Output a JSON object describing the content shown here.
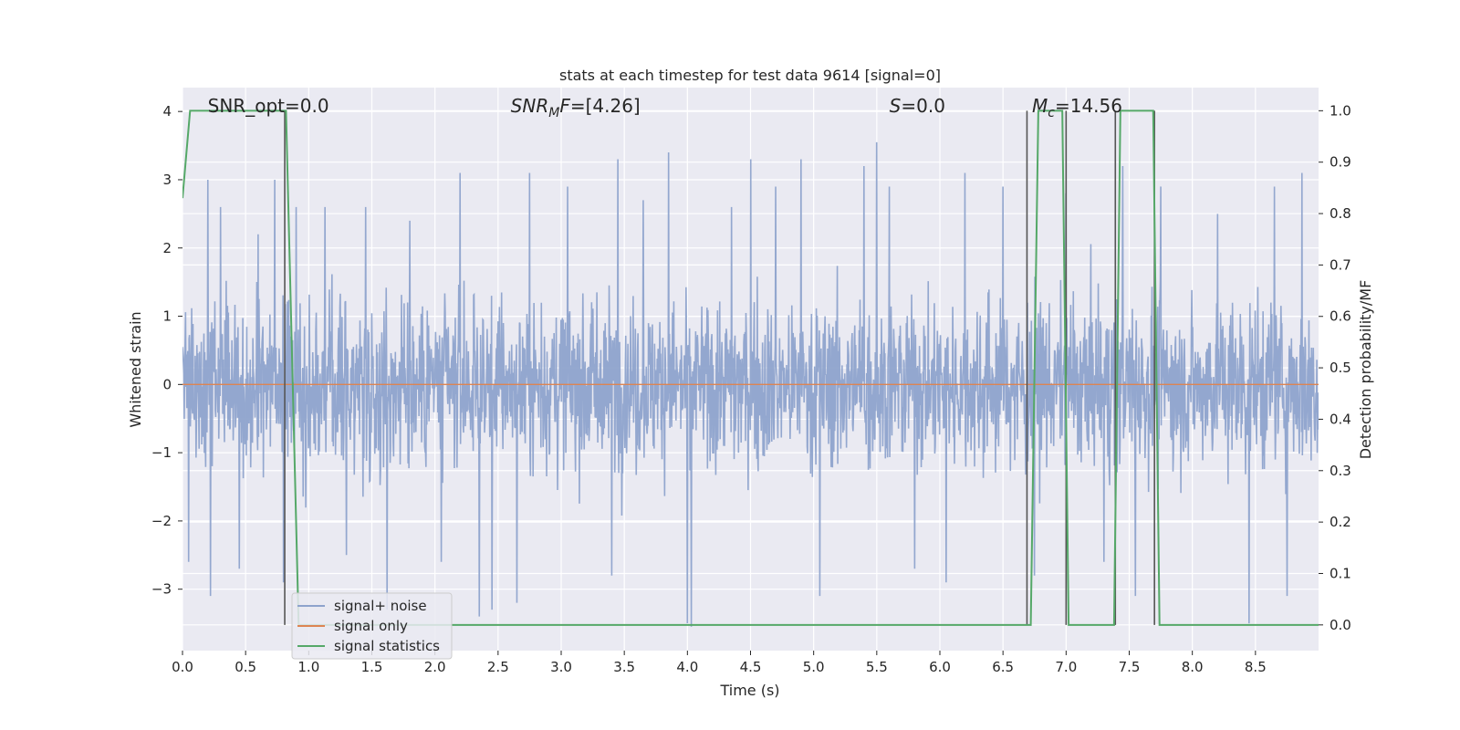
{
  "chart_data": {
    "type": "line",
    "title": "stats at each timestep for test data 9614 [signal=0]",
    "xlabel": "Time (s)",
    "ylabel_left": "Whitened strain",
    "ylabel_right": "Detection probability/MF",
    "xlim": [
      0.0,
      9.0
    ],
    "ylim_left": [
      -3.9,
      4.35
    ],
    "ylim_right": [
      -0.05,
      1.045
    ],
    "xticks": [
      "0.0",
      "0.5",
      "1.0",
      "1.5",
      "2.0",
      "2.5",
      "3.0",
      "3.5",
      "4.0",
      "4.5",
      "5.0",
      "5.5",
      "6.0",
      "6.5",
      "7.0",
      "7.5",
      "8.0",
      "8.5"
    ],
    "yticks_left": [
      "4",
      "3",
      "2",
      "1",
      "0",
      "−1",
      "−2",
      "−3"
    ],
    "yticks_right": [
      "1.0",
      "0.9",
      "0.8",
      "0.7",
      "0.6",
      "0.5",
      "0.4",
      "0.3",
      "0.2",
      "0.1",
      "0.0"
    ],
    "grid": true,
    "legend_placement": "lower-left",
    "annotations": [
      {
        "text": "SNR_opt=0.0",
        "x": 0.2
      },
      {
        "text": "SNRMF=[4.26]",
        "x": 2.6
      },
      {
        "text": "S=0.0",
        "x": 5.6
      },
      {
        "text": "Mc=14.56",
        "x": 6.6
      }
    ],
    "series": [
      {
        "name": "signal+ noise",
        "color": "#8ea3cc",
        "axis": "left",
        "peaks": [
          [
            0.05,
            -2.6
          ],
          [
            0.2,
            3.0
          ],
          [
            0.22,
            -3.1
          ],
          [
            0.3,
            2.6
          ],
          [
            0.45,
            -2.7
          ],
          [
            0.6,
            2.2
          ],
          [
            0.73,
            3.0
          ],
          [
            0.8,
            -2.9
          ],
          [
            0.9,
            2.6
          ],
          [
            1.13,
            2.6
          ],
          [
            1.3,
            -2.5
          ],
          [
            1.45,
            2.6
          ],
          [
            1.62,
            -3.3
          ],
          [
            1.8,
            2.4
          ],
          [
            2.05,
            -2.6
          ],
          [
            2.2,
            3.1
          ],
          [
            2.35,
            -3.4
          ],
          [
            2.45,
            -3.3
          ],
          [
            2.65,
            -3.2
          ],
          [
            2.75,
            3.1
          ],
          [
            3.05,
            2.9
          ],
          [
            3.4,
            -2.8
          ],
          [
            3.45,
            3.3
          ],
          [
            3.65,
            2.7
          ],
          [
            3.85,
            3.4
          ],
          [
            4.0,
            -3.5
          ],
          [
            4.03,
            -3.55
          ],
          [
            4.35,
            2.6
          ],
          [
            4.5,
            3.3
          ],
          [
            4.7,
            2.9
          ],
          [
            4.9,
            3.3
          ],
          [
            5.05,
            -3.1
          ],
          [
            5.4,
            3.2
          ],
          [
            5.5,
            3.55
          ],
          [
            5.6,
            2.9
          ],
          [
            5.8,
            -2.7
          ],
          [
            6.05,
            -2.9
          ],
          [
            6.2,
            3.1
          ],
          [
            6.5,
            2.9
          ],
          [
            6.75,
            -2.8
          ],
          [
            7.0,
            2.8
          ],
          [
            7.3,
            -2.6
          ],
          [
            7.45,
            3.2
          ],
          [
            7.55,
            -3.1
          ],
          [
            7.75,
            2.9
          ],
          [
            8.2,
            2.5
          ],
          [
            8.45,
            -3.5
          ],
          [
            8.65,
            2.9
          ],
          [
            8.75,
            -3.1
          ],
          [
            8.87,
            3.1
          ]
        ]
      },
      {
        "name": "signal only",
        "color": "#dd8452",
        "axis": "left",
        "x": [
          0.0,
          9.0
        ],
        "y": [
          0.0,
          0.0
        ]
      },
      {
        "name": "signal statistics",
        "color": "#55a868",
        "axis": "right",
        "x": [
          0.0,
          0.06,
          0.12,
          0.78,
          0.82,
          0.92,
          0.98,
          6.68,
          6.72,
          6.78,
          6.9,
          6.97,
          7.02,
          7.07,
          7.14,
          7.38,
          7.43,
          7.48,
          7.54,
          7.64,
          7.69,
          7.74,
          7.8,
          9.0
        ],
        "y": [
          0.83,
          1.0,
          1.0,
          1.0,
          1.0,
          0.0,
          0.0,
          0.0,
          0.0,
          1.0,
          1.0,
          1.0,
          0.0,
          0.0,
          0.0,
          0.0,
          1.0,
          1.0,
          1.0,
          1.0,
          1.0,
          0.0,
          0.0,
          0.0
        ]
      }
    ],
    "vertical_markers": [
      0.81,
      6.69,
      7.0,
      7.39,
      7.7
    ]
  }
}
